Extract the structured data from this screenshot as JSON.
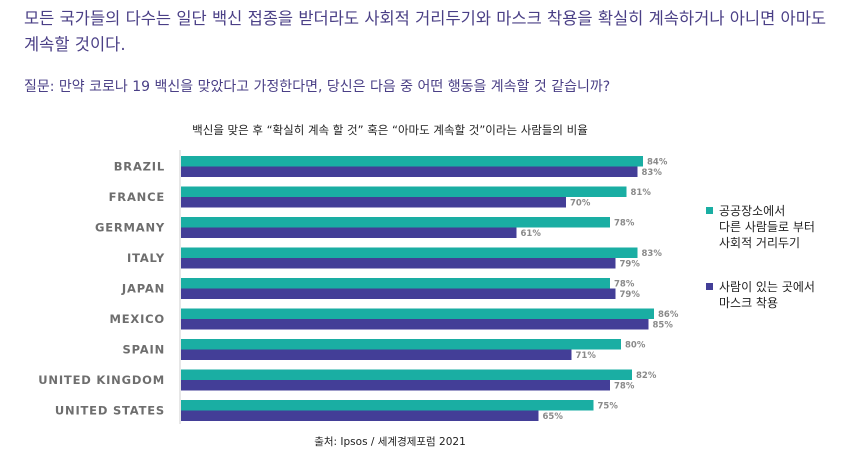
{
  "headline": "모든 국가들의 다수는 일단 백신 접종을 받더라도 사회적 거리두기와 마스크 착용을 확실히 계속하거나 아니면 아마도 계속할 것이다.",
  "question": "질문: 만약 코로나 19 백신을 맞았다고 가정한다면, 당신은 다음 중 어떤 행동을 계속할 것 같습니까?",
  "source": "출처: Ipsos / 세계경제포럼 2021",
  "colors": {
    "distancing": "#1aaea3",
    "mask": "#433e97",
    "text_purple": "#4a3f86"
  },
  "chart_data": {
    "type": "bar",
    "orientation": "horizontal",
    "title": "백신을 맞은 후 “확실히 계속 할 것” 혹은 “아마도 계속할 것”이라는 사람들의 비율",
    "categories": [
      "BRAZIL",
      "FRANCE",
      "GERMANY",
      "ITALY",
      "JAPAN",
      "MEXICO",
      "SPAIN",
      "UNITED KINGDOM",
      "UNITED STATES"
    ],
    "series": [
      {
        "name": "공공장소에서 다른 사람들로 부터 사회적 거리두기",
        "legend_lines": [
          "공공장소에서",
          "다른 사람들로 부터",
          "사회적 거리두기"
        ],
        "color": "#1aaea3",
        "values": [
          84,
          81,
          78,
          83,
          78,
          86,
          80,
          82,
          75
        ]
      },
      {
        "name": "사람이 있는 곳에서 마스크 착용",
        "legend_lines": [
          "사람이 있는 곳에서",
          "마스크 착용"
        ],
        "color": "#433e97",
        "values": [
          83,
          70,
          61,
          79,
          79,
          85,
          71,
          78,
          65
        ]
      }
    ],
    "value_suffix": "%",
    "xlim": [
      0,
      100
    ],
    "grid": false,
    "legend_position": "right"
  }
}
